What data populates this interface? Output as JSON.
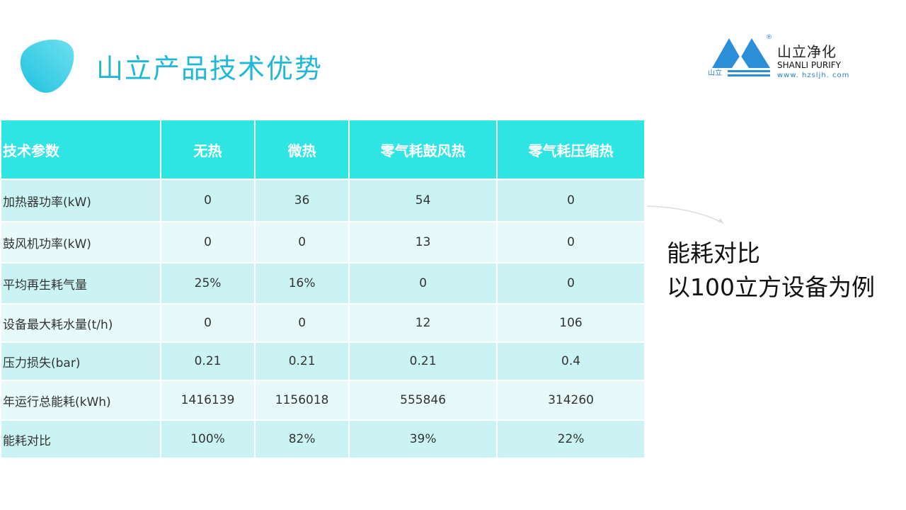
{
  "title": "山立产品技术优势",
  "logo": {
    "cn": "山立净化",
    "en": "SHANLI PURIFY",
    "url": "www. hzsljh. com",
    "mini": "山立",
    "reg": "®"
  },
  "colors": {
    "header": "#2ee5e4",
    "row_odd": "#cbf3f3",
    "row_even": "#e7f9f9",
    "title": "#1fb8d8"
  },
  "table": {
    "headers": [
      "技术参数",
      "无热",
      "微热",
      "零气耗鼓风热",
      "零气耗压缩热"
    ],
    "rows": [
      [
        "加热器功率(kW)",
        "0",
        "36",
        "54",
        "0"
      ],
      [
        "鼓风机功率(kW)",
        "0",
        "0",
        "13",
        "0"
      ],
      [
        "平均再生耗气量",
        "25%",
        "16%",
        "0",
        "0"
      ],
      [
        "设备最大耗水量(t/h)",
        "0",
        "0",
        "12",
        "106"
      ],
      [
        "压力损失(bar)",
        "0.21",
        "0.21",
        "0.21",
        "0.4"
      ],
      [
        "年运行总能耗(kWh)",
        "1416139",
        "1156018",
        "555846",
        "314260"
      ],
      [
        "能耗对比",
        "100%",
        "82%",
        "39%",
        "22%"
      ]
    ]
  },
  "note": {
    "line1": "能耗对比",
    "line2": "以100立方设备为例"
  }
}
